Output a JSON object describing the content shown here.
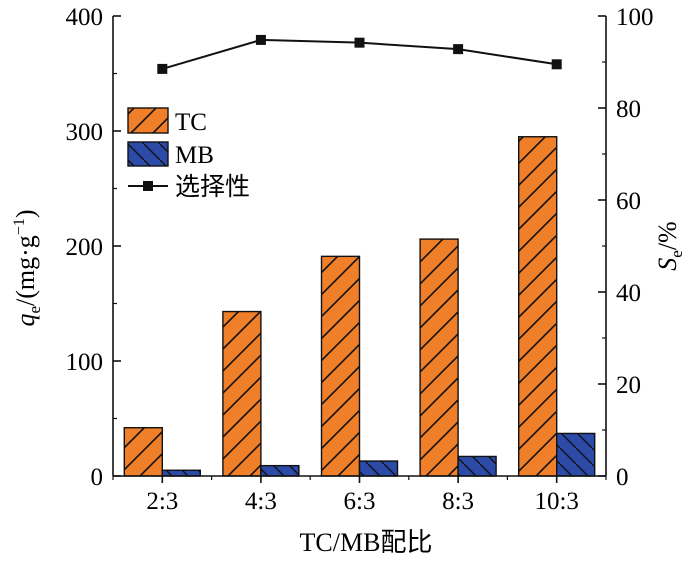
{
  "chart_data": {
    "type": "bar+line",
    "categories": [
      "2:3",
      "4:3",
      "6:3",
      "8:3",
      "10:3"
    ],
    "series": [
      {
        "name": "TC",
        "axis": "left",
        "kind": "bar",
        "values": [
          42,
          143,
          191,
          206,
          295
        ],
        "color": "#f07f2a",
        "hatch": "forward"
      },
      {
        "name": "MB",
        "axis": "left",
        "kind": "bar",
        "values": [
          5,
          9,
          13,
          17,
          37
        ],
        "color": "#2c4aa8",
        "hatch": "backward"
      },
      {
        "name": "选择性",
        "axis": "right",
        "kind": "line",
        "values": [
          88.5,
          94.8,
          94.2,
          92.8,
          89.5
        ],
        "color": "#111111",
        "marker": "square"
      }
    ],
    "xlabel": "TC/MB配比",
    "ylabel_left": {
      "main": "q",
      "sub": "e",
      "rest": "/(mg·g",
      "sup": "−1",
      "close": ")"
    },
    "ylabel_right": {
      "main": "S",
      "sub": "e",
      "rest": "/%"
    },
    "ylim_left": [
      0,
      400
    ],
    "ylim_right": [
      0,
      100
    ],
    "yticks_left": [
      "0",
      "100",
      "200",
      "300",
      "400"
    ],
    "yticks_right": [
      "0",
      "20",
      "40",
      "60",
      "80",
      "100"
    ],
    "legend": {
      "placement": "upper-left",
      "entries": [
        "TC",
        "MB",
        "选择性"
      ]
    },
    "grid": false
  }
}
